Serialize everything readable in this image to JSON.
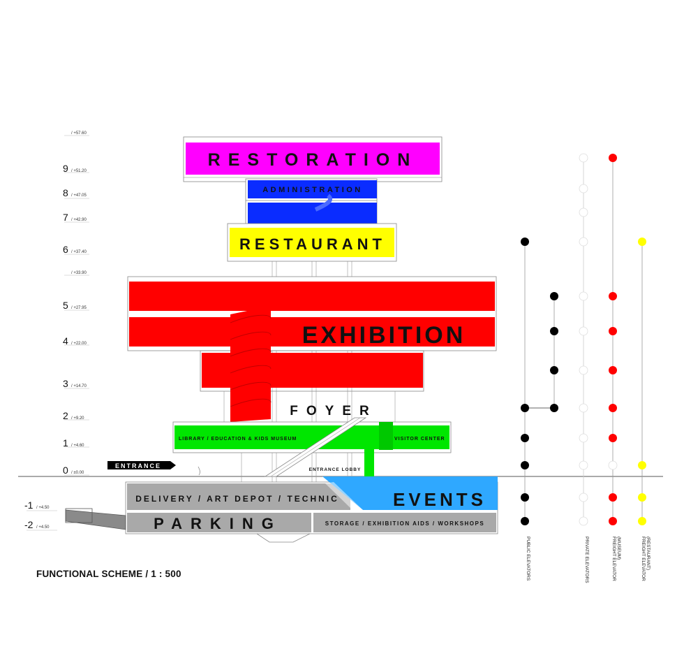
{
  "levels": [
    {
      "num": "",
      "elev": "/ +57.60"
    },
    {
      "num": "9",
      "elev": "/ +51.20"
    },
    {
      "num": "8",
      "elev": "/ +47.05"
    },
    {
      "num": "7",
      "elev": "/ +42.90"
    },
    {
      "num": "6",
      "elev": "/ +37.40"
    },
    {
      "num": "",
      "elev": "/ +33.90"
    },
    {
      "num": "5",
      "elev": "/ +27.95"
    },
    {
      "num": "4",
      "elev": "/ +22.00"
    },
    {
      "num": "3",
      "elev": "/ +14.70"
    },
    {
      "num": "2",
      "elev": "/ +9.20"
    },
    {
      "num": "1",
      "elev": "/ +4.60"
    },
    {
      "num": "0",
      "elev": "/ ±0.00"
    },
    {
      "num": "-1",
      "elev": "/ +4.50"
    },
    {
      "num": "-2",
      "elev": "/ +4.50"
    }
  ],
  "zones": {
    "restoration": "RESTORATION",
    "administration": "ADMINISTRATION",
    "restaurant": "RESTAURANT",
    "exhibition": "EXHIBITION",
    "foyer": "FOYER",
    "library": "LIBRARY / EDUCATION & KIDS MUSEUM",
    "visitor_center": "VISITOR CENTER",
    "entrance": "ENTRANCE",
    "entrance_lobby": "ENTRANCE LOBBY",
    "delivery": "DELIVERY / ART DEPOT / TECHNIC",
    "events": "EVENTS",
    "parking": "PARKING",
    "storage": "STORAGE / EXHIBITION AIDS / WORKSHOPS"
  },
  "colors": {
    "restoration": "#ff00ff",
    "administration": "#0a2cff",
    "restaurant": "#ffff00",
    "exhibition": "#ff0000",
    "library": "#00e600",
    "events": "#2fa8ff",
    "service": "#a9a9a9",
    "public_elevator": "#000000",
    "private_elevator": "#ffffff",
    "freight_museum": "#ff0000",
    "freight_restaurant": "#ffff00"
  },
  "elevator_columns": [
    {
      "label": "PUBLIC ELEVATORS",
      "sub": "",
      "color": "#000000"
    },
    {
      "label": "PRIVATE ELEVATORS",
      "sub": "",
      "color": "#ffffff"
    },
    {
      "label": "FREIGHT ELEVATOR",
      "sub": "(MUSEUM)",
      "color": "#ff0000"
    },
    {
      "label": "FREIGHT ELEVATOR",
      "sub": "(RESTAURANT)",
      "color": "#ffff00"
    }
  ],
  "title": "FUNCTIONAL SCHEME / 1 : 500"
}
